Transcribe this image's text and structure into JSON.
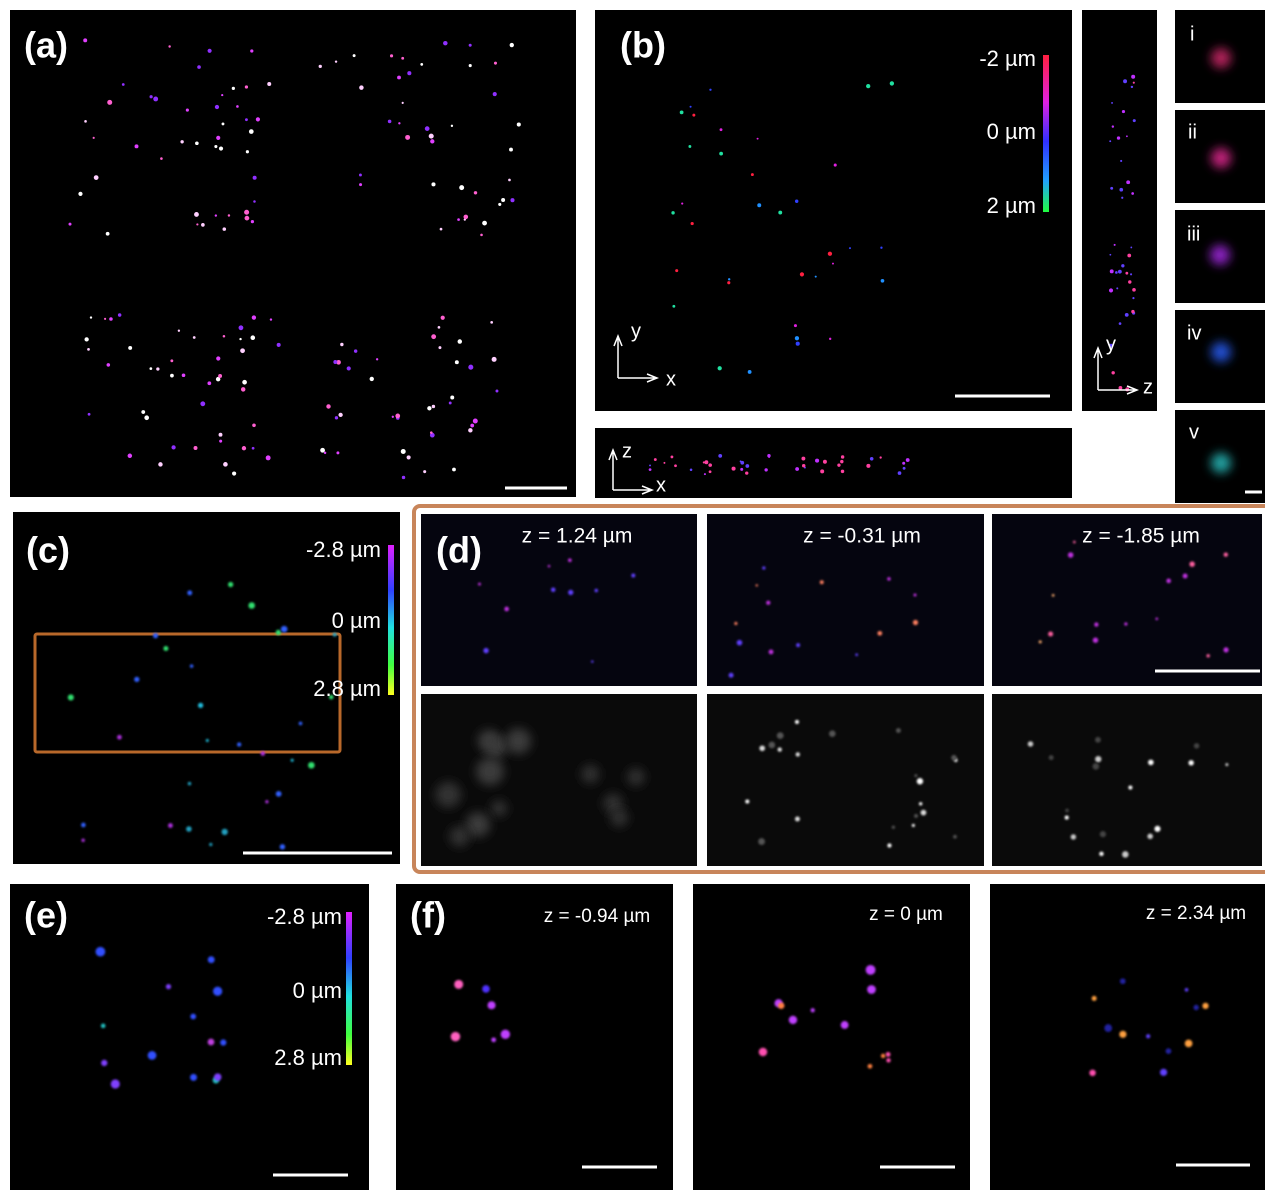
{
  "panels": {
    "a": {
      "label": "(a)"
    },
    "b": {
      "label": "(b)",
      "colorbar": [
        "-2 µm",
        "0 µm",
        "2 µm"
      ],
      "axes_xy": [
        "y",
        "x"
      ],
      "axes_yz": [
        "y",
        "z"
      ],
      "axes_xz": [
        "z",
        "x"
      ],
      "insets": [
        "i",
        "ii",
        "iii",
        "iv",
        "v"
      ]
    },
    "c": {
      "label": "(c)",
      "colorbar": [
        "-2.8 µm",
        "0 µm",
        "2.8 µm"
      ]
    },
    "d": {
      "label": "(d)",
      "slices": [
        "z = 1.24 µm",
        "z = -0.31 µm",
        "z = -1.85 µm"
      ]
    },
    "e": {
      "label": "(e)",
      "colorbar": [
        "-2.8 µm",
        "0 µm",
        "2.8 µm"
      ]
    },
    "f": {
      "label": "(f)",
      "slices": [
        "z = -0.94 µm",
        "z = 0 µm",
        "z = 2.34 µm"
      ]
    }
  }
}
